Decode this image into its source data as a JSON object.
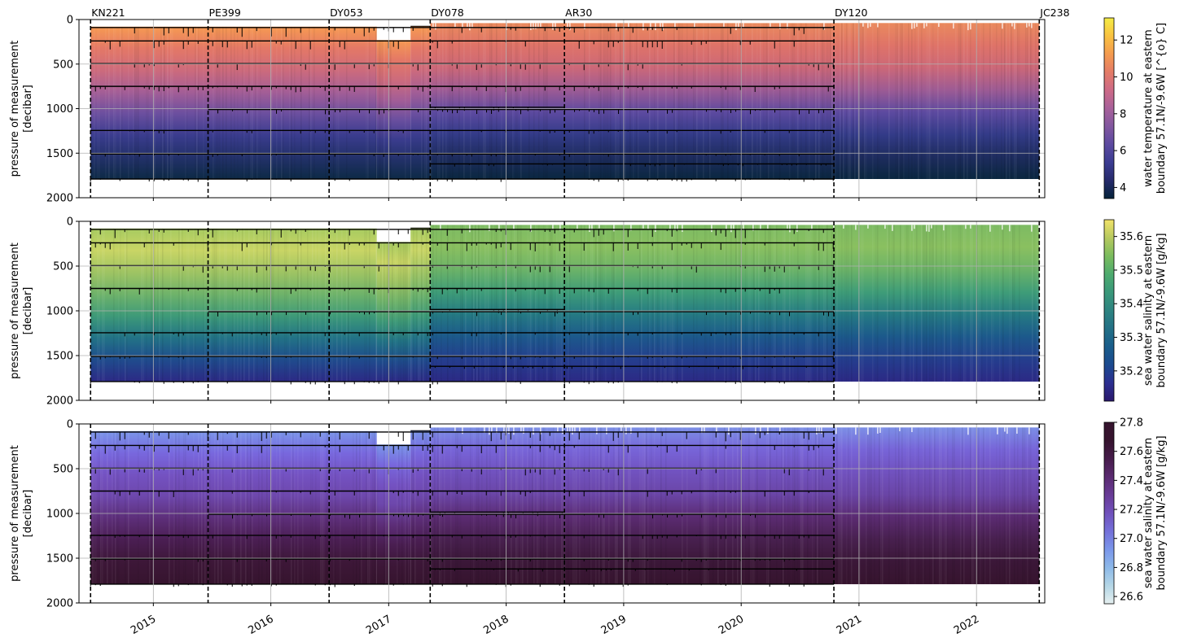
{
  "chart_data": [
    {
      "type": "heatmap",
      "variable": "temperature",
      "ylabel": [
        "pressure of measurement",
        "[decibar]"
      ],
      "colorbar_label": [
        "water temperature at eastern",
        "boundary 57.1N/-9.6W [^{o} C]"
      ],
      "colorbar_ticks": [
        "4",
        "6",
        "8",
        "10",
        "12"
      ],
      "colorbar_range": [
        3.4,
        13.2
      ],
      "colormap": "thermal",
      "ylim": [
        2000,
        0
      ],
      "yticks": [
        "0",
        "500",
        "1000",
        "1500",
        "2000"
      ],
      "grid": true,
      "show_cruise_labels": true,
      "show_xticks": false
    },
    {
      "type": "heatmap",
      "variable": "salinity",
      "ylabel": [
        "pressure of measurement",
        "[decibar]"
      ],
      "colorbar_label": [
        "sea water salinity at eastern",
        "boundary 57.1N/-9.6W [g/kg]"
      ],
      "colorbar_ticks": [
        "35.2",
        "35.3",
        "35.4",
        "35.5",
        "35.6"
      ],
      "colorbar_range": [
        35.11,
        35.65
      ],
      "colormap": "haline",
      "ylim": [
        2000,
        0
      ],
      "yticks": [
        "0",
        "500",
        "1000",
        "1500",
        "2000"
      ],
      "grid": true,
      "show_cruise_labels": false,
      "show_xticks": false
    },
    {
      "type": "heatmap",
      "variable": "density",
      "ylabel": [
        "pressure of measurement",
        "[decibar]"
      ],
      "colorbar_label": [
        "sea water salinity at eastern",
        "boundary 57.1N/-9.6W [g/kg]"
      ],
      "colorbar_ticks": [
        "26.6",
        "26.8",
        "27.0",
        "27.2",
        "27.4",
        "27.6",
        "27.8"
      ],
      "colorbar_range": [
        26.55,
        27.8
      ],
      "colormap": "dense",
      "ylim": [
        2000,
        0
      ],
      "yticks": [
        "0",
        "500",
        "1000",
        "1500",
        "2000"
      ],
      "grid": true,
      "show_cruise_labels": false,
      "show_xticks": true
    }
  ],
  "x_axis": {
    "range": [
      "2014-05-15",
      "2022-08-01"
    ],
    "ticks": [
      "2015",
      "2016",
      "2017",
      "2018",
      "2019",
      "2020",
      "2021",
      "2022"
    ],
    "tick_dates": [
      "2015-01-01",
      "2016-01-01",
      "2017-01-01",
      "2018-01-01",
      "2019-01-01",
      "2020-01-01",
      "2021-01-01",
      "2022-01-01"
    ]
  },
  "cruises": [
    {
      "name": "KN221",
      "date": "2014-06-20"
    },
    {
      "name": "PE399",
      "date": "2015-06-20"
    },
    {
      "name": "DY053",
      "date": "2016-06-30"
    },
    {
      "name": "DY078",
      "date": "2017-05-10"
    },
    {
      "name": "AR30",
      "date": "2018-07-01"
    },
    {
      "name": "DY120",
      "date": "2020-10-15"
    },
    {
      "name": "JC238",
      "date": "2022-07-15"
    }
  ],
  "instrument_depths": [
    {
      "pressure": 90,
      "start": "2014-06-20",
      "end": "2020-10-15"
    },
    {
      "pressure": 240,
      "start": "2014-06-20",
      "end": "2020-10-15"
    },
    {
      "pressure": 495,
      "start": "2014-06-20",
      "end": "2020-10-15"
    },
    {
      "pressure": 750,
      "start": "2014-06-20",
      "end": "2020-10-15"
    },
    {
      "pressure": 985,
      "start": "2017-05-10",
      "end": "2018-07-01"
    },
    {
      "pressure": 1010,
      "start": "2015-06-20",
      "end": "2020-10-15"
    },
    {
      "pressure": 1245,
      "start": "2014-06-20",
      "end": "2020-10-15"
    },
    {
      "pressure": 1510,
      "start": "2014-06-20",
      "end": "2020-10-15"
    },
    {
      "pressure": 1620,
      "start": "2017-05-10",
      "end": "2020-10-15"
    },
    {
      "pressure": 1790,
      "start": "2014-06-20",
      "end": "2020-10-15"
    }
  ],
  "data_coverage": {
    "top_pressure": [
      {
        "start": "2014-06-20",
        "end": "2016-11-25",
        "pressure": 80
      },
      {
        "start": "2016-11-25",
        "end": "2017-03-10",
        "pressure": 230
      },
      {
        "start": "2017-03-10",
        "end": "2017-05-10",
        "pressure": 75
      },
      {
        "start": "2017-05-10",
        "end": "2022-07-15",
        "pressure": 40
      }
    ],
    "bottom_pressure": 1790
  }
}
